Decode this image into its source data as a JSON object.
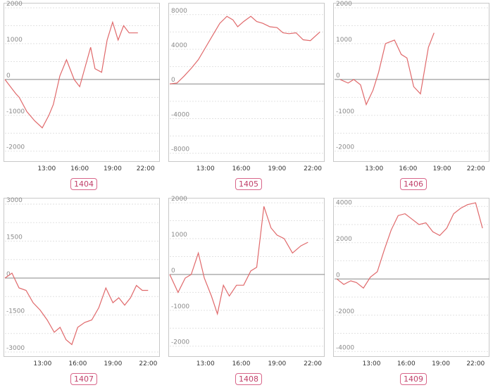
{
  "colors": {
    "series": "#e0696b",
    "label_border": "#d9668a",
    "label_text": "#c0406a"
  },
  "chart_data": [
    {
      "type": "line",
      "label": "1404",
      "ylim": [
        -2300,
        2100
      ],
      "yticks": [
        2000,
        1000,
        0,
        -1000,
        -2000
      ],
      "xtick_labels": [
        {
          "t": 13,
          "label": "13:00"
        },
        {
          "t": 16,
          "label": "16:00"
        },
        {
          "t": 19,
          "label": "19:00"
        },
        {
          "t": 22,
          "label": "22:00"
        }
      ],
      "xlim": [
        9.2,
        23.3
      ],
      "x": [
        9.2,
        10.2,
        10.5,
        11.2,
        11.9,
        12.6,
        13.2,
        13.6,
        14.2,
        14.8,
        15.5,
        16.0,
        16.5,
        17.0,
        17.4,
        18.0,
        18.5,
        19.0,
        19.5,
        20.0,
        20.5,
        21.0,
        21.3
      ],
      "y": [
        0,
        -400,
        -500,
        -900,
        -1150,
        -1350,
        -1000,
        -700,
        100,
        550,
        0,
        -200,
        350,
        900,
        300,
        200,
        1100,
        1600,
        1100,
        1500,
        1300,
        1300,
        1300
      ],
      "grid": true
    },
    {
      "type": "line",
      "label": "1405",
      "ylim": [
        -9000,
        9200
      ],
      "yticks": [
        8000,
        4000,
        0,
        -4000,
        -8000
      ],
      "xtick_labels": [
        {
          "t": 13,
          "label": "13:00"
        },
        {
          "t": 16,
          "label": "16:00"
        },
        {
          "t": 19,
          "label": "19:00"
        },
        {
          "t": 22,
          "label": "22:00"
        }
      ],
      "xlim": [
        10.0,
        23.0
      ],
      "x": [
        10.0,
        10.6,
        11.2,
        11.8,
        12.4,
        13.0,
        13.6,
        14.2,
        14.8,
        15.3,
        15.7,
        16.2,
        16.8,
        17.3,
        17.8,
        18.4,
        19.0,
        19.5,
        20.0,
        20.6,
        21.2,
        21.8,
        22.6
      ],
      "y": [
        0,
        100,
        900,
        1800,
        2800,
        4200,
        5600,
        7000,
        7800,
        7400,
        6600,
        7200,
        7800,
        7200,
        7000,
        6600,
        6500,
        5900,
        5800,
        5900,
        5100,
        5000,
        6000
      ],
      "grid": true
    },
    {
      "type": "line",
      "label": "1406",
      "ylim": [
        -2300,
        2100
      ],
      "yticks": [
        2000,
        1000,
        0,
        -1000,
        -2000
      ],
      "xtick_labels": [
        {
          "t": 13,
          "label": "13:00"
        },
        {
          "t": 16,
          "label": "16:00"
        },
        {
          "t": 19,
          "label": "19:00"
        },
        {
          "t": 22,
          "label": "22:00"
        }
      ],
      "xlim": [
        9.5,
        23.2
      ],
      "x": [
        10.0,
        10.7,
        11.2,
        11.8,
        12.3,
        12.9,
        13.4,
        14.0,
        14.8,
        15.4,
        15.9,
        16.5,
        17.1,
        17.8,
        18.3
      ],
      "y": [
        0,
        -100,
        0,
        -150,
        -700,
        -300,
        200,
        1000,
        1100,
        700,
        600,
        -200,
        -400,
        900,
        1300
      ],
      "grid": true
    },
    {
      "type": "line",
      "label": "1407",
      "ylim": [
        -3200,
        3200
      ],
      "yticks": [
        3000,
        1500,
        0,
        -1500,
        -3000
      ],
      "xtick_labels": [
        {
          "t": 13,
          "label": "13:00"
        },
        {
          "t": 16,
          "label": "16:00"
        },
        {
          "t": 19,
          "label": "19:00"
        },
        {
          "t": 22,
          "label": "22:00"
        }
      ],
      "xlim": [
        9.8,
        23.0
      ],
      "x": [
        9.8,
        10.4,
        11.0,
        11.6,
        12.2,
        12.8,
        13.4,
        14.0,
        14.5,
        15.0,
        15.5,
        16.0,
        16.6,
        17.2,
        17.8,
        18.4,
        19.0,
        19.5,
        20.0,
        20.5,
        21.0,
        21.5,
        22.0
      ],
      "y": [
        0,
        200,
        -400,
        -500,
        -1000,
        -1300,
        -1700,
        -2200,
        -2000,
        -2500,
        -2700,
        -2000,
        -1800,
        -1700,
        -1200,
        -400,
        -1000,
        -800,
        -1100,
        -800,
        -300,
        -500,
        -500
      ],
      "grid": true
    },
    {
      "type": "line",
      "label": "1408",
      "ylim": [
        -2300,
        2100
      ],
      "yticks": [
        2000,
        1000,
        0,
        -1000,
        -2000
      ],
      "xtick_labels": [
        {
          "t": 13,
          "label": "13:00"
        },
        {
          "t": 16,
          "label": "16:00"
        },
        {
          "t": 19,
          "label": "19:00"
        },
        {
          "t": 22,
          "label": "22:00"
        }
      ],
      "xlim": [
        10.0,
        23.0
      ],
      "x": [
        10.0,
        10.7,
        11.3,
        11.8,
        12.4,
        12.9,
        13.5,
        14.0,
        14.5,
        15.0,
        15.6,
        16.2,
        16.8,
        17.3,
        17.9,
        18.5,
        19.0,
        19.6,
        20.3,
        21.0,
        21.6
      ],
      "y": [
        0,
        -500,
        -100,
        0,
        600,
        -100,
        -600,
        -1100,
        -300,
        -600,
        -300,
        -300,
        100,
        200,
        1900,
        1300,
        1100,
        1000,
        600,
        800,
        900
      ],
      "grid": true
    },
    {
      "type": "line",
      "label": "1409",
      "ylim": [
        -4300,
        4400
      ],
      "yticks": [
        4000,
        2000,
        0,
        -2000,
        -4000
      ],
      "xtick_labels": [
        {
          "t": 13,
          "label": "13:00"
        },
        {
          "t": 16,
          "label": "16:00"
        },
        {
          "t": 19,
          "label": "19:00"
        },
        {
          "t": 22,
          "label": "22:00"
        }
      ],
      "xlim": [
        9.8,
        23.2
      ],
      "x": [
        10.0,
        10.6,
        11.2,
        11.7,
        12.3,
        12.9,
        13.5,
        14.1,
        14.7,
        15.3,
        15.9,
        16.5,
        17.1,
        17.7,
        18.3,
        18.9,
        19.5,
        20.1,
        20.7,
        21.3,
        22.0,
        22.6
      ],
      "y": [
        0,
        -300,
        -100,
        -200,
        -500,
        100,
        400,
        1600,
        2700,
        3500,
        3600,
        3300,
        3000,
        3100,
        2600,
        2400,
        2800,
        3600,
        3900,
        4100,
        4200,
        2800
      ],
      "grid": true
    }
  ]
}
